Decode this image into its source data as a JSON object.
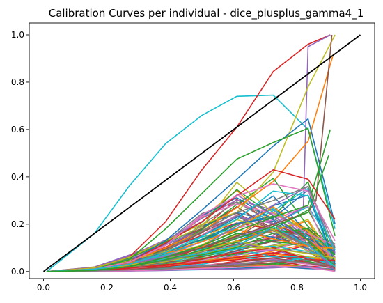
{
  "chart_data": {
    "type": "line",
    "title": "Calibration Curves per individual - dice_plusplus_gamma4_1",
    "xlabel": "",
    "ylabel": "",
    "xlim": [
      -0.045,
      1.045
    ],
    "ylim": [
      -0.03,
      1.05
    ],
    "grid": false,
    "legend": "none",
    "xticks": [
      0.0,
      0.2,
      0.4,
      0.6,
      0.8,
      1.0
    ],
    "xtick_labels": [
      "0.0",
      "0.2",
      "0.4",
      "0.6",
      "0.8",
      "1.0"
    ],
    "yticks": [
      0.0,
      0.2,
      0.4,
      0.6,
      0.8,
      1.0
    ],
    "ytick_labels": [
      "0.0",
      "0.2",
      "0.4",
      "0.6",
      "0.8",
      "1.0"
    ],
    "x_bins": [
      0.01,
      0.16,
      0.27,
      0.385,
      0.5,
      0.61,
      0.725,
      0.835,
      0.92
    ],
    "colors": [
      "#1f77b4",
      "#ff7f0e",
      "#2ca02c",
      "#d62728",
      "#9467bd",
      "#8c564b",
      "#e377c2",
      "#7f7f7f",
      "#bcbd22",
      "#17becf"
    ],
    "reference_line": {
      "name": "perfect-calibration",
      "x": [
        0.0,
        1.0
      ],
      "y": [
        0.0,
        1.0
      ],
      "color": "#000000"
    },
    "highlight_series": [
      {
        "name": "cyan-high",
        "color": "#17becf",
        "x": [
          0.01,
          0.16,
          0.27,
          0.385,
          0.5,
          0.61,
          0.725,
          0.835,
          0.92
        ],
        "y": [
          0.0,
          0.16,
          0.36,
          0.54,
          0.66,
          0.74,
          0.745,
          0.6,
          0.18
        ]
      },
      {
        "name": "red-peak",
        "color": "#d62728",
        "x": [
          0.01,
          0.16,
          0.27,
          0.385,
          0.5,
          0.61,
          0.725,
          0.835,
          0.905
        ],
        "y": [
          0.0,
          0.015,
          0.06,
          0.21,
          0.43,
          0.61,
          0.845,
          0.96,
          1.0
        ]
      },
      {
        "name": "purple-spike",
        "color": "#9467bd",
        "x": [
          0.01,
          0.16,
          0.27,
          0.385,
          0.5,
          0.61,
          0.725,
          0.82,
          0.835,
          0.905
        ],
        "y": [
          0.0,
          0.005,
          0.02,
          0.05,
          0.09,
          0.14,
          0.2,
          0.27,
          0.95,
          1.0
        ]
      },
      {
        "name": "olive-high",
        "color": "#bcbd22",
        "x": [
          0.01,
          0.16,
          0.27,
          0.385,
          0.5,
          0.61,
          0.725,
          0.835,
          0.92
        ],
        "y": [
          0.0,
          0.015,
          0.06,
          0.13,
          0.2,
          0.25,
          0.42,
          0.78,
          1.0
        ]
      },
      {
        "name": "orange-high",
        "color": "#ff7f0e",
        "x": [
          0.01,
          0.16,
          0.27,
          0.385,
          0.5,
          0.61,
          0.725,
          0.835,
          0.915
        ],
        "y": [
          0.0,
          0.01,
          0.04,
          0.1,
          0.17,
          0.27,
          0.38,
          0.55,
          0.92
        ]
      },
      {
        "name": "brown-spike",
        "color": "#8c564b",
        "x": [
          0.01,
          0.16,
          0.27,
          0.385,
          0.5,
          0.61,
          0.725,
          0.835,
          0.86,
          0.91
        ],
        "y": [
          0.0,
          0.005,
          0.02,
          0.06,
          0.1,
          0.15,
          0.2,
          0.25,
          0.3,
          1.0
        ]
      },
      {
        "name": "blue-peak",
        "color": "#1f77b4",
        "x": [
          0.01,
          0.16,
          0.27,
          0.385,
          0.5,
          0.61,
          0.725,
          0.835,
          0.92
        ],
        "y": [
          0.0,
          0.01,
          0.04,
          0.13,
          0.26,
          0.39,
          0.53,
          0.645,
          0.2
        ]
      },
      {
        "name": "green-peak",
        "color": "#2ca02c",
        "x": [
          0.01,
          0.16,
          0.27,
          0.385,
          0.5,
          0.61,
          0.725,
          0.835,
          0.92
        ],
        "y": [
          0.0,
          0.01,
          0.05,
          0.18,
          0.33,
          0.475,
          0.545,
          0.605,
          0.15
        ]
      },
      {
        "name": "green-late",
        "color": "#2ca02c",
        "x": [
          0.01,
          0.16,
          0.27,
          0.385,
          0.5,
          0.61,
          0.725,
          0.835,
          0.905
        ],
        "y": [
          0.0,
          0.005,
          0.02,
          0.06,
          0.11,
          0.17,
          0.23,
          0.28,
          0.6
        ]
      },
      {
        "name": "red-mid",
        "color": "#d62728",
        "x": [
          0.01,
          0.16,
          0.27,
          0.385,
          0.5,
          0.61,
          0.725,
          0.835,
          0.92
        ],
        "y": [
          0.0,
          0.01,
          0.04,
          0.12,
          0.21,
          0.32,
          0.43,
          0.39,
          0.22
        ]
      },
      {
        "name": "gray-mid",
        "color": "#7f7f7f",
        "x": [
          0.01,
          0.16,
          0.27,
          0.385,
          0.5,
          0.61,
          0.725,
          0.835,
          0.92
        ],
        "y": [
          0.0,
          0.01,
          0.03,
          0.09,
          0.17,
          0.25,
          0.3,
          0.36,
          0.1
        ]
      },
      {
        "name": "pink-mid",
        "color": "#e377c2",
        "x": [
          0.01,
          0.16,
          0.27,
          0.385,
          0.5,
          0.61,
          0.725,
          0.835,
          0.92
        ],
        "y": [
          0.0,
          0.01,
          0.04,
          0.11,
          0.24,
          0.32,
          0.37,
          0.34,
          0.13
        ]
      },
      {
        "name": "cyan-mid",
        "color": "#17becf",
        "x": [
          0.01,
          0.16,
          0.27,
          0.385,
          0.5,
          0.61,
          0.725,
          0.835,
          0.92
        ],
        "y": [
          0.0,
          0.01,
          0.03,
          0.08,
          0.15,
          0.22,
          0.34,
          0.32,
          0.09
        ]
      },
      {
        "name": "green-late2",
        "color": "#2ca02c",
        "x": [
          0.01,
          0.16,
          0.27,
          0.385,
          0.5,
          0.61,
          0.725,
          0.835,
          0.9
        ],
        "y": [
          0.0,
          0.005,
          0.02,
          0.05,
          0.09,
          0.14,
          0.19,
          0.25,
          0.49
        ]
      }
    ],
    "bulk_series": {
      "count": 100,
      "description": "dense cluster of individual calibration curves, peak values mostly between 0.02 and 0.35, tapering toward 0.0-0.2 at the last bin",
      "x": [
        0.01,
        0.16,
        0.27,
        0.385,
        0.5,
        0.61,
        0.725,
        0.835,
        0.92
      ],
      "peak_y_range": [
        0.02,
        0.36
      ],
      "final_y_range": [
        0.0,
        0.2
      ]
    }
  }
}
